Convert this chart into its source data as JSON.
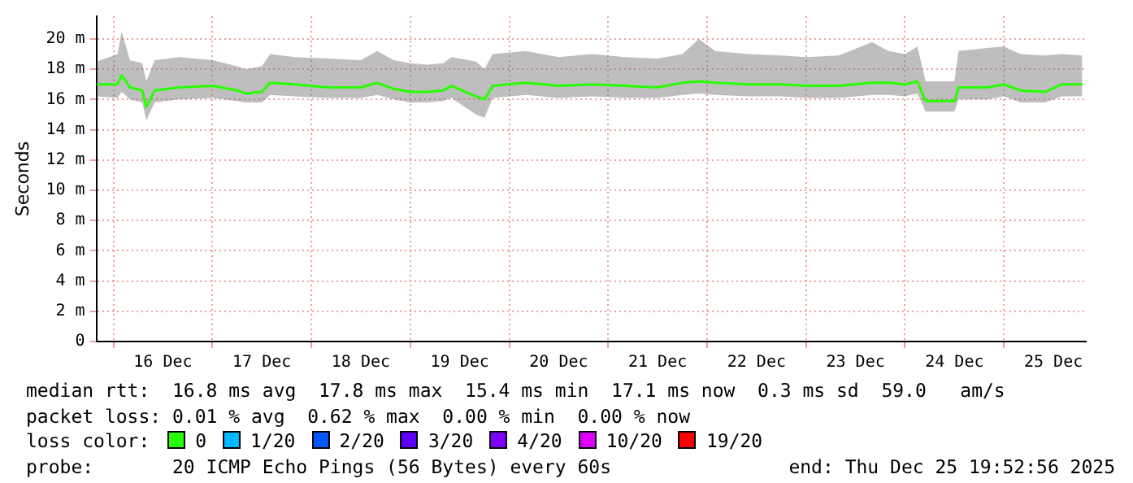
{
  "chart_data": {
    "type": "line",
    "ylabel": "Seconds",
    "x": [
      "2025-12-15T20:00",
      "2025-12-16T01:00",
      "2025-12-16T02:00",
      "2025-12-16T04:00",
      "2025-12-16T07:00",
      "2025-12-16T08:00",
      "2025-12-16T10:00",
      "2025-12-16T16:00",
      "2025-12-17T00:00",
      "2025-12-17T06:00",
      "2025-12-17T08:00",
      "2025-12-17T12:00",
      "2025-12-17T14:00",
      "2025-12-17T20:00",
      "2025-12-18T04:00",
      "2025-12-18T12:00",
      "2025-12-18T16:00",
      "2025-12-18T20:00",
      "2025-12-19T00:00",
      "2025-12-19T04:00",
      "2025-12-19T08:00",
      "2025-12-19T10:00",
      "2025-12-19T16:00",
      "2025-12-19T18:00",
      "2025-12-19T20:00",
      "2025-12-20T04:00",
      "2025-12-20T12:00",
      "2025-12-20T20:00",
      "2025-12-21T04:00",
      "2025-12-21T12:00",
      "2025-12-21T18:00",
      "2025-12-21T22:00",
      "2025-12-22T02:00",
      "2025-12-22T10:00",
      "2025-12-22T18:00",
      "2025-12-23T00:00",
      "2025-12-23T08:00",
      "2025-12-23T16:00",
      "2025-12-23T20:00",
      "2025-12-24T00:00",
      "2025-12-24T03:00",
      "2025-12-24T05:00",
      "2025-12-24T12:00",
      "2025-12-24T13:00",
      "2025-12-24T20:00",
      "2025-12-25T00:00",
      "2025-12-25T04:00",
      "2025-12-25T10:00",
      "2025-12-25T14:00",
      "2025-12-25T19:00"
    ],
    "series": [
      {
        "name": "0",
        "color": "#26ff00",
        "values": [
          17.0,
          17.0,
          17.6,
          16.8,
          16.6,
          15.5,
          16.6,
          16.8,
          16.9,
          16.6,
          16.4,
          16.5,
          17.1,
          17.0,
          16.8,
          16.8,
          17.1,
          16.7,
          16.5,
          16.5,
          16.6,
          16.9,
          16.2,
          16.0,
          16.9,
          17.1,
          16.9,
          17.0,
          16.9,
          16.8,
          17.1,
          17.2,
          17.1,
          17.0,
          17.0,
          16.9,
          16.9,
          17.1,
          17.1,
          17.0,
          17.2,
          15.9,
          15.9,
          16.8,
          16.8,
          17.0,
          16.6,
          16.5,
          17.0,
          17.0
        ],
        "lower": [
          16.2,
          16.1,
          16.5,
          16.0,
          15.8,
          14.6,
          15.8,
          16.0,
          16.1,
          15.9,
          15.8,
          15.8,
          16.3,
          16.2,
          16.1,
          16.1,
          16.3,
          16.0,
          15.8,
          15.8,
          15.9,
          16.1,
          15.0,
          14.8,
          16.1,
          16.3,
          16.1,
          16.2,
          16.1,
          16.1,
          16.3,
          16.4,
          16.3,
          16.2,
          16.2,
          16.1,
          16.1,
          16.3,
          16.3,
          16.2,
          16.4,
          15.2,
          15.2,
          16.0,
          16.0,
          16.2,
          15.8,
          15.8,
          16.2,
          16.2
        ],
        "upper": [
          18.5,
          19.0,
          20.5,
          18.6,
          18.4,
          17.2,
          18.6,
          18.8,
          18.6,
          18.2,
          18.0,
          18.2,
          19.0,
          18.8,
          18.7,
          18.6,
          19.2,
          18.6,
          18.4,
          18.3,
          18.4,
          18.8,
          18.5,
          18.0,
          19.0,
          19.2,
          18.8,
          19.0,
          18.8,
          18.7,
          19.0,
          20.0,
          19.2,
          19.0,
          18.9,
          18.8,
          18.9,
          19.8,
          19.2,
          19.0,
          19.5,
          17.2,
          17.2,
          19.2,
          19.4,
          19.5,
          19.0,
          18.9,
          19.0,
          18.9
        ]
      },
      {
        "name": "1/20",
        "color": "#00b8ff",
        "values": [
          null,
          null,
          null,
          null,
          null,
          null,
          null,
          null,
          null,
          null,
          null,
          null,
          null,
          null,
          null,
          null,
          null,
          null,
          null,
          null,
          null,
          null,
          null,
          null,
          null,
          null,
          null,
          null,
          null,
          null,
          null,
          null,
          null,
          null,
          null,
          null,
          null,
          null,
          null,
          null,
          null,
          null,
          null,
          null,
          null,
          null,
          null,
          null,
          null,
          null
        ]
      },
      {
        "name": "2/20",
        "color": "#0059ff",
        "values": [
          null,
          null,
          null,
          null,
          null,
          null,
          null,
          null,
          null,
          null,
          null,
          null,
          null,
          null,
          null,
          null,
          null,
          null,
          null,
          null,
          null,
          null,
          null,
          null,
          null,
          null,
          null,
          null,
          null,
          null,
          null,
          null,
          null,
          null,
          null,
          null,
          null,
          null,
          null,
          null,
          null,
          null,
          null,
          null,
          null,
          null,
          null,
          null,
          null,
          null
        ]
      },
      {
        "name": "3/20",
        "color": "#5e00ff",
        "values": [
          null,
          null,
          null,
          null,
          null,
          null,
          null,
          null,
          null,
          null,
          null,
          null,
          null,
          null,
          null,
          null,
          null,
          null,
          null,
          null,
          null,
          null,
          null,
          null,
          null,
          null,
          null,
          null,
          null,
          null,
          null,
          null,
          null,
          null,
          null,
          null,
          null,
          null,
          null,
          null,
          null,
          null,
          null,
          null,
          null,
          null,
          null,
          null,
          null,
          null
        ]
      },
      {
        "name": "4/20",
        "color": "#7e00ff",
        "values": [
          null,
          null,
          null,
          null,
          null,
          null,
          null,
          null,
          null,
          null,
          null,
          null,
          null,
          null,
          null,
          null,
          null,
          null,
          null,
          null,
          null,
          null,
          null,
          null,
          null,
          null,
          null,
          null,
          null,
          null,
          null,
          null,
          null,
          null,
          null,
          null,
          null,
          null,
          null,
          null,
          null,
          null,
          null,
          null,
          null,
          null,
          null,
          null,
          null,
          null
        ]
      },
      {
        "name": "10/20",
        "color": "#dd00ff",
        "values": [
          null,
          null,
          null,
          null,
          null,
          null,
          null,
          null,
          null,
          null,
          null,
          null,
          null,
          null,
          null,
          null,
          null,
          null,
          null,
          null,
          null,
          null,
          null,
          null,
          null,
          null,
          null,
          null,
          null,
          null,
          null,
          null,
          null,
          null,
          null,
          null,
          null,
          null,
          null,
          null,
          null,
          null,
          null,
          null,
          null,
          null,
          null,
          null,
          null,
          null
        ]
      },
      {
        "name": "19/20",
        "color": "#ff0000",
        "values": [
          null,
          null,
          null,
          null,
          null,
          null,
          null,
          null,
          null,
          null,
          null,
          null,
          null,
          null,
          null,
          null,
          null,
          null,
          null,
          null,
          null,
          null,
          null,
          null,
          null,
          null,
          null,
          null,
          null,
          null,
          null,
          null,
          null,
          null,
          null,
          null,
          null,
          null,
          null,
          null,
          null,
          null,
          null,
          null,
          null,
          null,
          null,
          null,
          null,
          null
        ]
      }
    ],
    "legend": "bottom",
    "legend_title": "loss color:",
    "grid": true,
    "marker": "none",
    "xlim": [
      "2025-12-15T19:52",
      "2025-12-25T19:52"
    ],
    "xticks": [
      {
        "value": "2025-12-16T00:00",
        "label": null
      },
      {
        "value": "2025-12-16T12:00",
        "label": "16 Dec"
      },
      {
        "value": "2025-12-17T00:00",
        "label": null
      },
      {
        "value": "2025-12-17T12:00",
        "label": "17 Dec"
      },
      {
        "value": "2025-12-18T00:00",
        "label": null
      },
      {
        "value": "2025-12-18T12:00",
        "label": "18 Dec"
      },
      {
        "value": "2025-12-19T00:00",
        "label": null
      },
      {
        "value": "2025-12-19T12:00",
        "label": "19 Dec"
      },
      {
        "value": "2025-12-20T00:00",
        "label": null
      },
      {
        "value": "2025-12-20T12:00",
        "label": "20 Dec"
      },
      {
        "value": "2025-12-21T00:00",
        "label": null
      },
      {
        "value": "2025-12-21T12:00",
        "label": "21 Dec"
      },
      {
        "value": "2025-12-22T00:00",
        "label": null
      },
      {
        "value": "2025-12-22T12:00",
        "label": "22 Dec"
      },
      {
        "value": "2025-12-23T00:00",
        "label": null
      },
      {
        "value": "2025-12-23T12:00",
        "label": "23 Dec"
      },
      {
        "value": "2025-12-24T00:00",
        "label": null
      },
      {
        "value": "2025-12-24T12:00",
        "label": "24 Dec"
      },
      {
        "value": "2025-12-25T00:00",
        "label": null
      },
      {
        "value": "2025-12-25T12:00",
        "label": "25 Dec"
      }
    ],
    "ylim": [
      0,
      21.5
    ],
    "yticks": [
      0,
      {
        "value": 2,
        "label": "2 m"
      },
      {
        "value": 4,
        "label": "4 m"
      },
      {
        "value": 6,
        "label": "6 m"
      },
      {
        "value": 8,
        "label": "8 m"
      },
      {
        "value": 10,
        "label": "10 m"
      },
      {
        "value": 12,
        "label": "12 m"
      },
      {
        "value": 14,
        "label": "14 m"
      },
      {
        "value": 16,
        "label": "16 m"
      },
      {
        "value": 18,
        "label": "18 m"
      },
      {
        "value": 20,
        "label": "20 m"
      }
    ],
    "annotations": [
      "median rtt:  16.8 ms avg  17.8 ms max  15.4 ms min  17.1 ms now  0.3 ms sd  59.0   am/s",
      "packet loss: 0.01 % avg  0.62 % max  0.00 % min  0.00 % now",
      "probe:       20 ICMP Echo Pings (56 Bytes) every 60s",
      "end: Thu Dec 25 19:52:56 2025"
    ]
  }
}
